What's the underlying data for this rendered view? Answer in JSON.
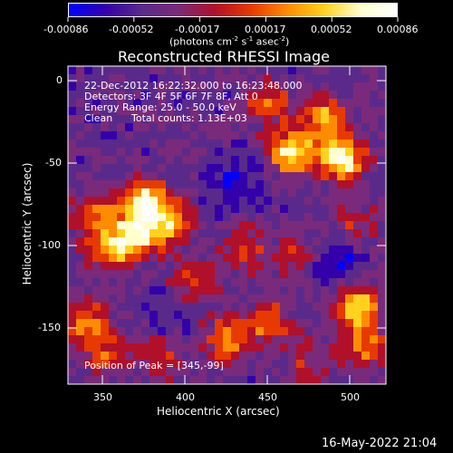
{
  "colorbar": {
    "tick_labels": [
      "-0.00086",
      "-0.00052",
      "-0.00017",
      "0.00017",
      "0.00052",
      "0.00086"
    ],
    "units_prefix": "(photons cm",
    "units_sup1": "-2",
    "units_mid1": " s",
    "units_sup2": "-1",
    "units_mid2": " asec",
    "units_sup3": "-2",
    "units_suffix": ")",
    "colors": [
      "#0000ff",
      "#3300aa",
      "#5a2a8a",
      "#7a2a7a",
      "#b0102a",
      "#e63a00",
      "#ff8c00",
      "#ffd21e",
      "#ffffcc",
      "#ffffff"
    ]
  },
  "plot": {
    "title": "Reconstructed RHESSI Image",
    "info": {
      "time_range": "22-Dec-2012 16:22:32.000 to 16:23:48.000",
      "detectors": "Detectors: 3F 4F 5F 6F 7F 8F, Att 0",
      "energy": "Energy Range: 25.0 - 50.0 keV",
      "algorithm": "Clean",
      "counts": "Total counts: 1.13E+03"
    },
    "peak_text": "Position of Peak = [345,-99]",
    "x_axis_title": "Heliocentric X (arcsec)",
    "y_axis_title": "Heliocentric Y (arcsec)",
    "x_ticks": [
      "350",
      "400",
      "450",
      "500"
    ],
    "y_ticks": [
      "0",
      "-50",
      "-100",
      "-150"
    ]
  },
  "footer": {
    "timestamp": "16-May-2022 21:04"
  }
}
